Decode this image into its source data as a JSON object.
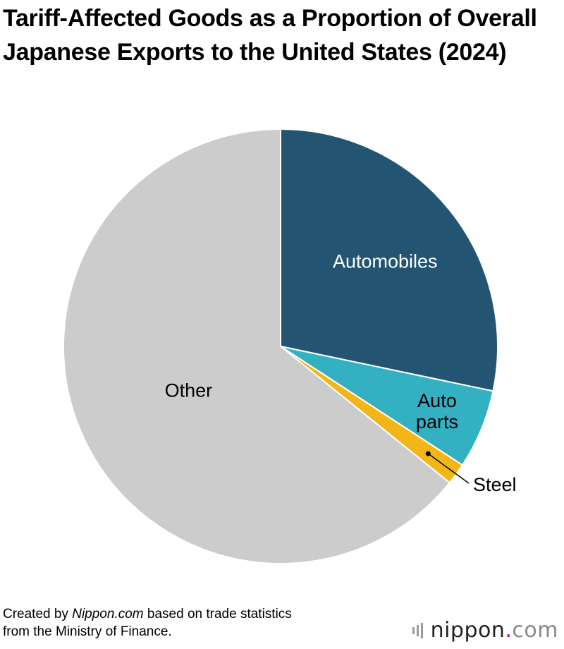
{
  "title": "Tariff-Affected Goods as a Proportion of Overall Japanese Exports to the United States (2024)",
  "chart_data": {
    "type": "pie",
    "title": "Tariff-Affected Goods as a Proportion of Overall Japanese Exports to the United States (2024)",
    "start_angle_deg": 0,
    "direction": "clockwise",
    "slices": [
      {
        "label": "Automobiles",
        "label_lines": [
          "Automobiles"
        ],
        "value": 28.3,
        "color": "#235573",
        "label_color": "#ffffff"
      },
      {
        "label": "Auto parts",
        "label_lines": [
          "Auto",
          "parts"
        ],
        "value": 5.9,
        "color": "#33b0c2",
        "label_color": "#000000"
      },
      {
        "label": "Steel",
        "label_lines": [
          "Steel"
        ],
        "value": 1.6,
        "color": "#f2b617",
        "label_color": "#000000",
        "label_outside": true
      },
      {
        "label": "Other",
        "label_lines": [
          "Other"
        ],
        "value": 64.2,
        "color": "#cccccc",
        "label_color": "#000000"
      }
    ]
  },
  "source": {
    "prefix": "Created by ",
    "site": "Nippon.com",
    "suffix": " based on trade statistics",
    "line2": "from the Ministry of Finance."
  },
  "logo": {
    "word": "nippon",
    "dot": ".",
    "tld": "com"
  }
}
